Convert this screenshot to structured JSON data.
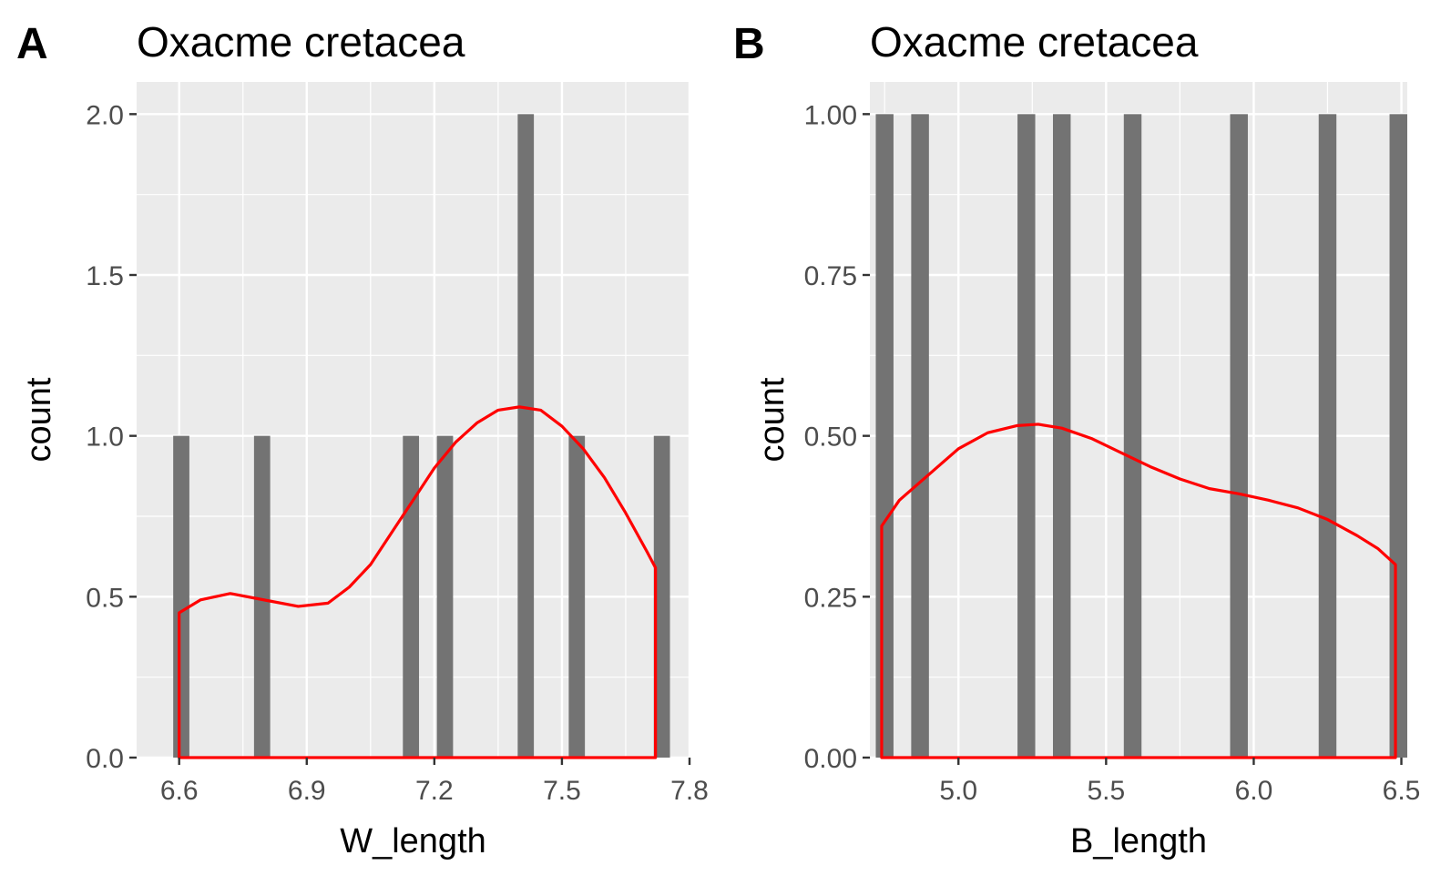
{
  "chart_data": [
    {
      "panel_label": "A",
      "type": "bar",
      "title": "Oxacme cretacea",
      "xlabel": "W_length",
      "ylabel": "count",
      "xlim": [
        6.5,
        7.8
      ],
      "ylim": [
        0,
        2.1
      ],
      "x_ticks": [
        6.6,
        6.9,
        7.2,
        7.5,
        7.8
      ],
      "x_tick_labels": [
        "6.6",
        "6.9",
        "7.2",
        "7.5",
        "7.8"
      ],
      "y_ticks": [
        0,
        0.5,
        1,
        1.5,
        2
      ],
      "y_tick_labels": [
        "0.0",
        "0.5",
        "1.0",
        "1.5",
        "2.0"
      ],
      "x_minor": [
        6.75,
        7.05,
        7.35,
        7.65
      ],
      "y_minor": [
        0.25,
        0.75,
        1.25,
        1.75
      ],
      "bar_width": 0.038,
      "bars": [
        {
          "x": 6.605,
          "count": 1
        },
        {
          "x": 6.795,
          "count": 1
        },
        {
          "x": 7.145,
          "count": 1
        },
        {
          "x": 7.225,
          "count": 1
        },
        {
          "x": 7.415,
          "count": 2
        },
        {
          "x": 7.535,
          "count": 1
        },
        {
          "x": 7.735,
          "count": 1
        }
      ],
      "density": {
        "x": [
          6.6,
          6.65,
          6.72,
          6.8,
          6.88,
          6.95,
          7.0,
          7.05,
          7.1,
          7.15,
          7.2,
          7.25,
          7.3,
          7.35,
          7.4,
          7.45,
          7.5,
          7.55,
          7.6,
          7.65,
          7.7,
          7.72
        ],
        "y": [
          0.45,
          0.49,
          0.51,
          0.49,
          0.47,
          0.48,
          0.53,
          0.6,
          0.7,
          0.8,
          0.9,
          0.98,
          1.04,
          1.08,
          1.09,
          1.08,
          1.03,
          0.96,
          0.87,
          0.76,
          0.64,
          0.59
        ]
      },
      "bar_color": "#737373",
      "density_color": "#ff0000",
      "panel_background": "#ebebeb",
      "grid": true
    },
    {
      "panel_label": "B",
      "type": "bar",
      "title": "Oxacme cretacea",
      "xlabel": "B_length",
      "ylabel": "count",
      "xlim": [
        4.7,
        6.52
      ],
      "ylim": [
        0,
        1.05
      ],
      "x_ticks": [
        5.0,
        5.5,
        6.0,
        6.5
      ],
      "x_tick_labels": [
        "5.0",
        "5.5",
        "6.0",
        "6.5"
      ],
      "y_ticks": [
        0,
        0.25,
        0.5,
        0.75,
        1
      ],
      "y_tick_labels": [
        "0.00",
        "0.25",
        "0.50",
        "0.75",
        "1.00"
      ],
      "x_minor": [
        4.75,
        5.25,
        5.75,
        6.25
      ],
      "y_minor": [
        0.125,
        0.375,
        0.625,
        0.875
      ],
      "bar_width": 0.06,
      "bars": [
        {
          "x": 4.75,
          "count": 1
        },
        {
          "x": 4.87,
          "count": 1
        },
        {
          "x": 5.23,
          "count": 1
        },
        {
          "x": 5.35,
          "count": 1
        },
        {
          "x": 5.59,
          "count": 1
        },
        {
          "x": 5.95,
          "count": 1
        },
        {
          "x": 6.25,
          "count": 1
        },
        {
          "x": 6.49,
          "count": 1
        }
      ],
      "density": {
        "x": [
          4.74,
          4.8,
          4.9,
          5.0,
          5.1,
          5.2,
          5.27,
          5.35,
          5.45,
          5.55,
          5.65,
          5.75,
          5.85,
          5.95,
          6.05,
          6.15,
          6.25,
          6.35,
          6.42,
          6.48
        ],
        "y": [
          0.36,
          0.4,
          0.44,
          0.48,
          0.505,
          0.516,
          0.518,
          0.512,
          0.496,
          0.474,
          0.452,
          0.433,
          0.418,
          0.41,
          0.4,
          0.388,
          0.37,
          0.345,
          0.325,
          0.3
        ]
      },
      "bar_color": "#737373",
      "density_color": "#ff0000",
      "panel_background": "#ebebeb",
      "grid": true
    }
  ]
}
